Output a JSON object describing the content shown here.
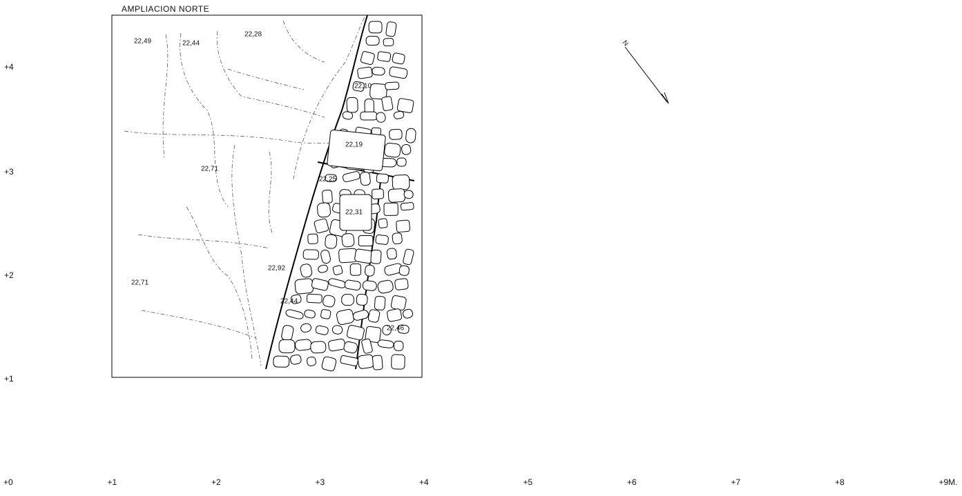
{
  "title": "AMPLIACION NORTE",
  "north": "N",
  "elevations": [
    "22,49",
    "22,44",
    "22,28",
    "22,10",
    "22,19",
    "22,71",
    "22,25",
    "22,31",
    "22,92",
    "22,71",
    "22,44",
    "22,46"
  ],
  "y_axis": [
    "+4",
    "+3",
    "+2",
    "+1"
  ],
  "x_axis": [
    "+0",
    "+1",
    "+2",
    "+3",
    "+4",
    "+5",
    "+6",
    "+7",
    "+8",
    "+9M."
  ]
}
